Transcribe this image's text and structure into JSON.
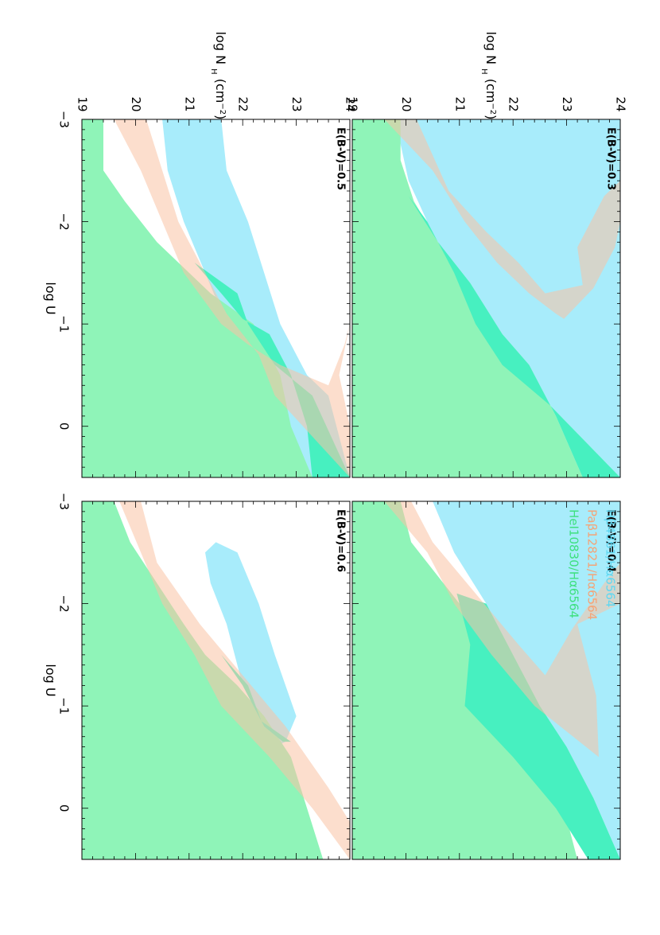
{
  "chart_data": {
    "type": "area",
    "orientation": "figure rotated 90 degrees counter-clockwise",
    "layout": "2x2 grid of panels",
    "xaxis": {
      "label": "log U",
      "range": [
        -3,
        0.5
      ],
      "ticks": [
        "-3",
        "-2",
        "-1",
        "0"
      ]
    },
    "yaxis": {
      "label": "log N",
      "label_sub": "H",
      "label_unit": "(cm",
      "label_sup": "−2",
      "label_close": ")",
      "range": [
        19,
        24
      ],
      "ticks": [
        "19",
        "20",
        "21",
        "22",
        "23",
        "24"
      ]
    },
    "legend": {
      "placement": "top-right panel, upper left",
      "entries": [
        {
          "label": "Hβ4861/Hα6564",
          "color": "#5fd8f2"
        },
        {
          "label": "Paβ12821/Hα6564",
          "color": "#f4a478"
        },
        {
          "label": "HeI10830/Hα6564",
          "color": "#3ee07f"
        }
      ]
    },
    "series_colors": {
      "hbeta": "#a8ecfb",
      "pabeta": "#f9c3a4",
      "hei": "#8ff4b8",
      "hei_over_hbeta": "#47f0c0",
      "overlap_pab_hbeta": "#c0bea2",
      "overlap_pab_hei": "#a3b97a",
      "overlap_all": "#94b386"
    },
    "panels": [
      {
        "id": "ebv03",
        "label": "E(B-V)=0.3",
        "hbeta": [
          [
            -3,
            19.8
          ],
          [
            -2.4,
            20.05
          ],
          [
            -2,
            20.4
          ],
          [
            -1.5,
            20.9
          ],
          [
            -1,
            21.3
          ],
          [
            -0.6,
            21.8
          ],
          [
            -0.2,
            22.7
          ],
          [
            0.5,
            24
          ],
          [
            0.5,
            24
          ],
          [
            -1,
            24
          ],
          [
            -2.3,
            24
          ],
          [
            -3,
            24
          ]
        ],
        "pabeta": [
          [
            -3,
            19.6
          ],
          [
            -2.5,
            20.5
          ],
          [
            -2,
            21.1
          ],
          [
            -1.6,
            21.7
          ],
          [
            -1.3,
            22.3
          ],
          [
            -1.1,
            22.8
          ],
          [
            -1.05,
            22.95
          ],
          [
            -1.35,
            23.5
          ],
          [
            -1.75,
            23.9
          ],
          [
            -2,
            24
          ],
          [
            -2.2,
            24
          ],
          [
            -2.4,
            24
          ],
          [
            -2.25,
            23.7
          ],
          [
            -1.75,
            23.2
          ],
          [
            -1.38,
            23.3
          ],
          [
            -1.3,
            22.6
          ],
          [
            -1.6,
            22.1
          ],
          [
            -1.9,
            21.5
          ],
          [
            -2.3,
            20.8
          ],
          [
            -3,
            20.2
          ]
        ],
        "hei": [
          [
            -3,
            19
          ],
          [
            -3,
            19.9
          ],
          [
            -2.6,
            19.9
          ],
          [
            -2.2,
            20.15
          ],
          [
            -1.8,
            20.6
          ],
          [
            -1.4,
            21.2
          ],
          [
            -0.9,
            21.8
          ],
          [
            -0.6,
            22.3
          ],
          [
            -0.1,
            22.8
          ],
          [
            0.5,
            23.3
          ],
          [
            0.5,
            19
          ]
        ],
        "hei_over_hbeta": [
          [
            -2.25,
            20.05
          ],
          [
            -1.8,
            20.6
          ],
          [
            -1.4,
            21.2
          ],
          [
            -0.9,
            21.8
          ],
          [
            -0.6,
            22.3
          ],
          [
            -0.1,
            22.8
          ],
          [
            0.5,
            23.3
          ],
          [
            0.5,
            24
          ],
          [
            -0.2,
            22.7
          ],
          [
            -0.6,
            21.8
          ],
          [
            -1,
            21.3
          ],
          [
            -1.5,
            20.9
          ],
          [
            -2,
            20.4
          ]
        ]
      },
      {
        "id": "ebv04",
        "label": "E(B-V)=0.4",
        "hbeta": [
          [
            -3,
            20.5
          ],
          [
            -2.5,
            20.9
          ],
          [
            -2,
            21.5
          ],
          [
            -1.4,
            22.1
          ],
          [
            -1,
            22.5
          ],
          [
            -0.6,
            23
          ],
          [
            -0.1,
            23.5
          ],
          [
            0.5,
            24
          ],
          [
            -1,
            24
          ],
          [
            -2.5,
            24
          ],
          [
            -3,
            24
          ]
        ],
        "pabeta": [
          [
            -3,
            19.6
          ],
          [
            -2.5,
            20.4
          ],
          [
            -2,
            20.9
          ],
          [
            -1.5,
            21.6
          ],
          [
            -1,
            22.4
          ],
          [
            -0.5,
            23.6
          ],
          [
            -1.1,
            23.55
          ],
          [
            -1.8,
            23.2
          ],
          [
            -2,
            24
          ],
          [
            -2.1,
            24
          ],
          [
            -2.4,
            24
          ],
          [
            -2.2,
            23.7
          ],
          [
            -1.75,
            23.1
          ],
          [
            -1.3,
            22.6
          ],
          [
            -1.6,
            22.1
          ],
          [
            -2.1,
            21.3
          ],
          [
            -2.6,
            20.5
          ],
          [
            -3,
            20.1
          ]
        ],
        "hei": [
          [
            -3,
            19
          ],
          [
            -3,
            19.9
          ],
          [
            -2.6,
            20.1
          ],
          [
            -2.2,
            20.7
          ],
          [
            -1.8,
            21.3
          ],
          [
            -1.3,
            21.9
          ],
          [
            -0.9,
            22.4
          ],
          [
            -0.3,
            22.8
          ],
          [
            0.5,
            23.2
          ],
          [
            0.5,
            19
          ]
        ],
        "hei_over_hbeta": [
          [
            -2.1,
            20.95
          ],
          [
            -1.6,
            21.2
          ],
          [
            -1,
            21.1
          ],
          [
            -0.5,
            22
          ],
          [
            0,
            22.8
          ],
          [
            0.5,
            23.4
          ],
          [
            0.5,
            24
          ],
          [
            -0.1,
            23.5
          ],
          [
            -0.6,
            23
          ],
          [
            -1,
            22.5
          ],
          [
            -1.4,
            22.1
          ],
          [
            -2,
            21.5
          ]
        ]
      },
      {
        "id": "ebv05",
        "label": "E(B-V)=0.5",
        "hbeta": [
          [
            -3,
            20.5
          ],
          [
            -2.5,
            20.6
          ],
          [
            -2,
            20.9
          ],
          [
            -1.5,
            21.3
          ],
          [
            -1,
            21.7
          ],
          [
            -0.6,
            22.1
          ],
          [
            -0.3,
            22.5
          ],
          [
            0.5,
            23.3
          ],
          [
            0.5,
            24
          ],
          [
            -0.3,
            23.6
          ],
          [
            -0.5,
            23.2
          ],
          [
            -1,
            22.7
          ],
          [
            -1.5,
            22.4
          ],
          [
            -2,
            22.1
          ],
          [
            -2.5,
            21.7
          ],
          [
            -3,
            21.6
          ]
        ],
        "pabeta": [
          [
            -3,
            19.6
          ],
          [
            -2.5,
            20.1
          ],
          [
            -2,
            20.5
          ],
          [
            -1.5,
            20.9
          ],
          [
            -1,
            21.6
          ],
          [
            -0.8,
            22.1
          ],
          [
            -0.6,
            22.7
          ],
          [
            -0.4,
            23.6
          ],
          [
            -0.8,
            23.9
          ],
          [
            -1,
            24
          ],
          [
            -0.5,
            23.8
          ],
          [
            0,
            24
          ],
          [
            0.5,
            24
          ],
          [
            -0.3,
            22.6
          ],
          [
            -0.7,
            22.3
          ],
          [
            -1.1,
            21.7
          ],
          [
            -1.5,
            21.3
          ],
          [
            -2,
            20.8
          ],
          [
            -3,
            20.2
          ]
        ],
        "hei": [
          [
            -3,
            19
          ],
          [
            -3,
            19.4
          ],
          [
            -2.5,
            19.4
          ],
          [
            -2.2,
            19.8
          ],
          [
            -1.8,
            20.4
          ],
          [
            -1.3,
            21.4
          ],
          [
            -1,
            22.2
          ],
          [
            -0.5,
            22.7
          ],
          [
            0,
            22.9
          ],
          [
            0.5,
            23.3
          ],
          [
            0.5,
            19
          ]
        ],
        "hei_over_hbeta": [
          [
            -1.6,
            21.1
          ],
          [
            -1.3,
            21.6
          ],
          [
            -1.05,
            22
          ],
          [
            -0.9,
            22.5
          ],
          [
            -0.5,
            22.9
          ],
          [
            0,
            23.2
          ],
          [
            0.5,
            23.3
          ],
          [
            0.5,
            24
          ],
          [
            -0.3,
            23.3
          ],
          [
            -0.6,
            22.6
          ],
          [
            -1,
            22.1
          ],
          [
            -1.3,
            21.9
          ]
        ]
      },
      {
        "id": "ebv06",
        "label": "E(B-V)=0.6",
        "hbeta": [
          [
            -2.5,
            21.3
          ],
          [
            -2.2,
            21.4
          ],
          [
            -1.8,
            21.7
          ],
          [
            -1.2,
            22
          ],
          [
            -0.9,
            22.3
          ],
          [
            -0.6,
            22.6
          ],
          [
            -0.65,
            22.8
          ],
          [
            -0.9,
            23
          ],
          [
            -1.5,
            22.6
          ],
          [
            -2,
            22.3
          ],
          [
            -2.5,
            21.9
          ],
          [
            -2.6,
            21.5
          ]
        ],
        "pabeta": [
          [
            -3,
            19.7
          ],
          [
            -2.5,
            20.1
          ],
          [
            -2,
            20.5
          ],
          [
            -1.5,
            21.1
          ],
          [
            -1,
            21.6
          ],
          [
            -0.5,
            22.5
          ],
          [
            0,
            23.3
          ],
          [
            0.5,
            24
          ],
          [
            0.3,
            24.2
          ],
          [
            -0.2,
            23.6
          ],
          [
            -0.8,
            22.8
          ],
          [
            -1.3,
            22
          ],
          [
            -1.8,
            21.2
          ],
          [
            -2.4,
            20.4
          ],
          [
            -3,
            20.1
          ]
        ],
        "hei": [
          [
            -3,
            19
          ],
          [
            -3,
            19.6
          ],
          [
            -2.6,
            19.9
          ],
          [
            -2.2,
            20.4
          ],
          [
            -1.8,
            20.9
          ],
          [
            -1.5,
            21.3
          ],
          [
            -1.2,
            21.9
          ],
          [
            -0.9,
            22.4
          ],
          [
            -0.5,
            22.9
          ],
          [
            0,
            23.2
          ],
          [
            0.5,
            23.5
          ],
          [
            0.5,
            19
          ]
        ],
        "hei_over_hbeta": [
          [
            -1.5,
            21.6
          ],
          [
            -1.2,
            22.1
          ],
          [
            -0.85,
            22.35
          ],
          [
            -0.65,
            22.9
          ],
          [
            -0.65,
            22.75
          ],
          [
            -0.8,
            22.4
          ],
          [
            -1.2,
            22
          ]
        ]
      }
    ]
  }
}
